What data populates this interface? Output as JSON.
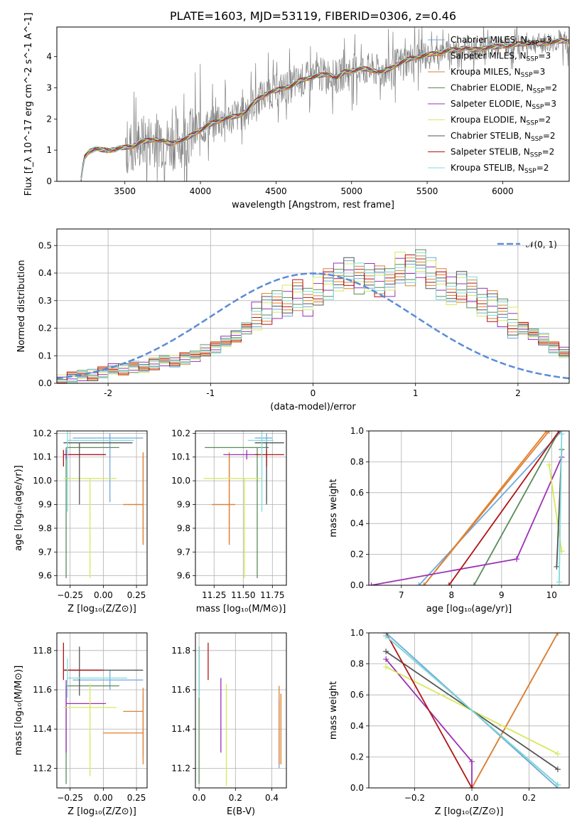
{
  "series_styles": [
    {
      "name": "Chabrier MILES",
      "nssp": "3",
      "color": "#6fa8dc"
    },
    {
      "name": "Salpeter MILES",
      "nssp": "3",
      "color": "#e67e22"
    },
    {
      "name": "Kroupa MILES",
      "nssp": "3",
      "color": "#d9823b"
    },
    {
      "name": "Chabrier ELODIE",
      "nssp": "2",
      "color": "#5b8a5b"
    },
    {
      "name": "Salpeter ELODIE",
      "nssp": "3",
      "color": "#9b30b5"
    },
    {
      "name": "Kroupa ELODIE",
      "nssp": "2",
      "color": "#d8e85a"
    },
    {
      "name": "Chabrier STELIB",
      "nssp": "2",
      "color": "#555555"
    },
    {
      "name": "Salpeter STELIB",
      "nssp": "2",
      "color": "#b01515"
    },
    {
      "name": "Kroupa STELIB",
      "nssp": "2",
      "color": "#7fdcdc"
    }
  ],
  "chart_data": [
    {
      "id": "spectrum",
      "type": "line",
      "title": "PLATE=1603, MJD=53119, FIBERID=0306, z=0.46",
      "xlabel": "wavelength [Angstrom, rest frame]",
      "ylabel": "Flux [f_λ 10^-17 erg cm^-2 s^-1 A^-1]",
      "xlim": [
        3050,
        6440
      ],
      "ylim": [
        0,
        4.95
      ],
      "xticks": [
        3500,
        4000,
        4500,
        5000,
        5500,
        6000
      ],
      "yticks": [
        0,
        1,
        2,
        3,
        4
      ],
      "continuum_x": [
        3210,
        3230,
        3260,
        3300,
        3350,
        3400,
        3450,
        3500,
        3550,
        3600,
        3650,
        3700,
        3750,
        3800,
        3850,
        3900,
        3950,
        4000,
        4050,
        4100,
        4150,
        4200,
        4250,
        4300,
        4350,
        4400,
        4450,
        4500,
        4550,
        4600,
        4650,
        4700,
        4750,
        4800,
        4850,
        4900,
        4950,
        5000,
        5050,
        5100,
        5150,
        5200,
        5250,
        5300,
        5350,
        5400,
        5450,
        5500,
        5550,
        5600,
        5650,
        5700,
        5750,
        5800,
        5850,
        5900,
        5950,
        6000,
        6050,
        6100,
        6150,
        6200,
        6250,
        6300,
        6350,
        6400,
        6440
      ],
      "continuum_y": [
        0.05,
        0.75,
        0.95,
        1.05,
        1.0,
        1.0,
        1.05,
        1.08,
        1.12,
        1.25,
        1.3,
        1.35,
        1.3,
        1.2,
        1.3,
        1.35,
        1.5,
        1.65,
        1.8,
        1.9,
        2.0,
        2.05,
        2.1,
        2.25,
        2.5,
        2.7,
        2.85,
        2.9,
        3.0,
        3.05,
        3.2,
        3.3,
        3.35,
        3.4,
        3.45,
        3.3,
        3.5,
        3.55,
        3.6,
        3.6,
        3.55,
        3.5,
        3.6,
        3.75,
        3.85,
        3.95,
        4.0,
        4.05,
        4.1,
        4.15,
        4.2,
        4.22,
        4.3,
        4.2,
        4.25,
        4.3,
        4.3,
        4.35,
        4.35,
        4.4,
        4.42,
        4.45,
        4.4,
        4.45,
        4.48,
        4.5,
        4.5
      ],
      "data_color": "#808080",
      "legend_position": "upper right",
      "grid": false
    },
    {
      "id": "residuals",
      "type": "histogram",
      "xlabel": "(data-model)/error",
      "ylabel": "Normed distribution",
      "xlim": [
        -2.5,
        2.5
      ],
      "ylim": [
        0,
        0.56
      ],
      "xticks": [
        -2,
        -1,
        0,
        1,
        2
      ],
      "yticks": [
        0.0,
        0.1,
        0.2,
        0.3,
        0.4,
        0.5
      ],
      "bin_width": 0.1,
      "bins_start": -2.5,
      "hist_values": [
        0.01,
        0.02,
        0.03,
        0.03,
        0.04,
        0.05,
        0.05,
        0.06,
        0.06,
        0.07,
        0.08,
        0.08,
        0.09,
        0.1,
        0.12,
        0.13,
        0.15,
        0.17,
        0.2,
        0.25,
        0.27,
        0.28,
        0.3,
        0.32,
        0.3,
        0.34,
        0.36,
        0.38,
        0.4,
        0.38,
        0.39,
        0.37,
        0.36,
        0.42,
        0.41,
        0.44,
        0.4,
        0.36,
        0.33,
        0.35,
        0.33,
        0.3,
        0.28,
        0.25,
        0.22,
        0.2,
        0.18,
        0.16,
        0.13,
        0.11
      ],
      "gaussian_label": "𝒩(0, 1)",
      "gaussian_color": "#5b8bd8",
      "grid": true,
      "legend_position": "upper right"
    },
    {
      "id": "age_vs_Z",
      "type": "errorbar",
      "xlabel": "Z [log₁₀(Z/Z⊙)]",
      "ylabel": "age  [log₁₀(age/yr)]",
      "xlim": [
        -0.35,
        0.33
      ],
      "ylim": [
        9.56,
        10.21
      ],
      "xticks": [
        -0.25,
        0.0,
        0.25
      ],
      "xtick_labels": [
        "−0.25",
        "0.00",
        "0.25"
      ],
      "yticks": [
        9.6,
        9.7,
        9.8,
        9.9,
        10.0,
        10.1,
        10.2
      ],
      "ytick_labels": [
        "9.6",
        "9.7",
        "9.8",
        "9.9",
        "10.0",
        "10.1",
        "10.2"
      ],
      "points": [
        {
          "x": 0.05,
          "y": 10.18,
          "xerr": [
            0.28,
            0.25
          ],
          "yerr": [
            0.27,
            0.02
          ],
          "s": 0
        },
        {
          "x": 0.3,
          "y": 9.9,
          "xerr": [
            0.15,
            0.0
          ],
          "yerr": [
            0.17,
            0.22
          ],
          "s": 1
        },
        {
          "x": 0.3,
          "y": 9.9,
          "xerr": [
            0.15,
            0.0
          ],
          "yerr": [
            0.16,
            0.21
          ],
          "s": 2
        },
        {
          "x": -0.28,
          "y": 10.14,
          "xerr": [
            0.0,
            0.4
          ],
          "yerr": [
            0.55,
            0.0
          ],
          "s": 3
        },
        {
          "x": -0.28,
          "y": 10.11,
          "xerr": [
            0.0,
            0.3
          ],
          "yerr": [
            0.02,
            0.02
          ],
          "s": 4
        },
        {
          "x": -0.1,
          "y": 10.01,
          "xerr": [
            0.2,
            0.2
          ],
          "yerr": [
            0.42,
            0.0
          ],
          "s": 5
        },
        {
          "x": -0.18,
          "y": 10.16,
          "xerr": [
            0.12,
            0.4
          ],
          "yerr": [
            0.26,
            0.0
          ],
          "s": 6
        },
        {
          "x": -0.3,
          "y": 10.11,
          "xerr": [
            0.0,
            0.32
          ],
          "yerr": [
            0.05,
            0.02
          ],
          "s": 7
        },
        {
          "x": -0.27,
          "y": 10.17,
          "xerr": [
            0.0,
            0.5
          ],
          "yerr": [
            0.3,
            0.04
          ],
          "s": 8
        }
      ],
      "grid": true
    },
    {
      "id": "age_vs_mass",
      "type": "errorbar",
      "xlabel": "mass [log₁₀(M/M⊙)]",
      "ylabel": "",
      "xlim": [
        11.09,
        11.87
      ],
      "ylim": [
        9.56,
        10.21
      ],
      "xticks": [
        11.25,
        11.5,
        11.75
      ],
      "xtick_labels": [
        "11.25",
        "11.50",
        "11.75"
      ],
      "yticks": [
        9.6,
        9.7,
        9.8,
        9.9,
        10.0,
        10.1,
        10.2
      ],
      "ytick_labels": [
        "9.6",
        "9.7",
        "9.8",
        "9.9",
        "10.0",
        "10.1",
        "10.2"
      ],
      "points": [
        {
          "x": 11.7,
          "y": 10.18,
          "xerr": [
            0.1,
            0.05
          ],
          "yerr": [
            0.27,
            0.02
          ],
          "s": 0
        },
        {
          "x": 11.38,
          "y": 9.9,
          "xerr": [
            0.15,
            0.05
          ],
          "yerr": [
            0.17,
            0.22
          ],
          "s": 1
        },
        {
          "x": 11.38,
          "y": 9.9,
          "xerr": [
            0.15,
            0.05
          ],
          "yerr": [
            0.16,
            0.21
          ],
          "s": 2
        },
        {
          "x": 11.62,
          "y": 10.14,
          "xerr": [
            0.45,
            0.1
          ],
          "yerr": [
            0.55,
            0.0
          ],
          "s": 3
        },
        {
          "x": 11.53,
          "y": 10.11,
          "xerr": [
            0.2,
            0.1
          ],
          "yerr": [
            0.02,
            0.02
          ],
          "s": 4
        },
        {
          "x": 11.51,
          "y": 10.01,
          "xerr": [
            0.35,
            0.15
          ],
          "yerr": [
            0.42,
            0.0
          ],
          "s": 5
        },
        {
          "x": 11.7,
          "y": 10.16,
          "xerr": [
            0.1,
            0.15
          ],
          "yerr": [
            0.26,
            0.0
          ],
          "s": 6
        },
        {
          "x": 11.7,
          "y": 10.11,
          "xerr": [
            0.1,
            0.15
          ],
          "yerr": [
            0.05,
            0.02
          ],
          "s": 7
        },
        {
          "x": 11.66,
          "y": 10.17,
          "xerr": [
            0.12,
            0.1
          ],
          "yerr": [
            0.3,
            0.04
          ],
          "s": 8
        }
      ],
      "grid": true
    },
    {
      "id": "weight_vs_age",
      "type": "line",
      "xlabel": "age  [log₁₀(age/yr)]",
      "ylabel": "mass weight",
      "xlim": [
        6.35,
        10.35
      ],
      "ylim": [
        0,
        1.0
      ],
      "xticks": [
        7,
        8,
        9,
        10
      ],
      "xtick_labels": [
        "7",
        "8",
        "9",
        "10"
      ],
      "yticks": [
        0.0,
        0.2,
        0.4,
        0.6,
        0.8,
        1.0
      ],
      "ytick_labels": [
        "0.0",
        "0.2",
        "0.4",
        "0.6",
        "0.8",
        "1.0"
      ],
      "lines": [
        {
          "x": [
            7.35,
            10.2
          ],
          "y": [
            0.0,
            1.0
          ],
          "s": 0
        },
        {
          "x": [
            7.45,
            9.9
          ],
          "y": [
            0.0,
            1.0
          ],
          "s": 1
        },
        {
          "x": [
            7.45,
            9.95
          ],
          "y": [
            0.0,
            1.0
          ],
          "s": 2
        },
        {
          "x": [
            8.45,
            10.15
          ],
          "y": [
            0.0,
            1.0
          ],
          "s": 3
        },
        {
          "x": [
            6.4,
            9.3,
            10.2
          ],
          "y": [
            0.0,
            0.17,
            0.83
          ],
          "s": 4
        },
        {
          "x": [
            9.95,
            10.2
          ],
          "y": [
            0.78,
            0.22
          ],
          "s": 5
        },
        {
          "x": [
            10.1,
            10.2
          ],
          "y": [
            0.12,
            0.88
          ],
          "s": 6
        },
        {
          "x": [
            7.95,
            10.15
          ],
          "y": [
            0.0,
            1.0
          ],
          "s": 7
        },
        {
          "x": [
            10.15,
            10.2
          ],
          "y": [
            0.02,
            0.98
          ],
          "s": 8
        }
      ],
      "grid": true
    },
    {
      "id": "mass_vs_Z",
      "type": "errorbar",
      "xlabel": "Z [log₁₀(Z/Z⊙)]",
      "ylabel": "mass [log₁₀(M/M⊙)]",
      "xlim": [
        -0.35,
        0.33
      ],
      "ylim": [
        11.1,
        11.89
      ],
      "xticks": [
        -0.25,
        0.0,
        0.25
      ],
      "xtick_labels": [
        "−0.25",
        "0.00",
        "0.25"
      ],
      "yticks": [
        11.2,
        11.4,
        11.6,
        11.8
      ],
      "ytick_labels": [
        "11.2",
        "11.4",
        "11.6",
        "11.8"
      ],
      "points": [
        {
          "x": 0.05,
          "y": 11.65,
          "xerr": [
            0.28,
            0.25
          ],
          "yerr": [
            0.05,
            0.05
          ],
          "s": 0
        },
        {
          "x": 0.3,
          "y": 11.38,
          "xerr": [
            0.3,
            0.0
          ],
          "yerr": [
            0.12,
            0.2
          ],
          "s": 1
        },
        {
          "x": 0.3,
          "y": 11.49,
          "xerr": [
            0.15,
            0.0
          ],
          "yerr": [
            0.27,
            0.12
          ],
          "s": 2
        },
        {
          "x": -0.28,
          "y": 11.62,
          "xerr": [
            0.0,
            0.4
          ],
          "yerr": [
            0.5,
            0.0
          ],
          "s": 3
        },
        {
          "x": -0.28,
          "y": 11.53,
          "xerr": [
            0.0,
            0.3
          ],
          "yerr": [
            0.25,
            0.12
          ],
          "s": 4
        },
        {
          "x": -0.1,
          "y": 11.51,
          "xerr": [
            0.2,
            0.2
          ],
          "yerr": [
            0.35,
            0.12
          ],
          "s": 5
        },
        {
          "x": -0.18,
          "y": 11.7,
          "xerr": [
            0.12,
            0.48
          ],
          "yerr": [
            0.13,
            0.12
          ],
          "s": 6
        },
        {
          "x": -0.3,
          "y": 11.7,
          "xerr": [
            0.0,
            0.3
          ],
          "yerr": [
            0.05,
            0.14
          ],
          "s": 7
        },
        {
          "x": -0.27,
          "y": 11.66,
          "xerr": [
            0.0,
            0.45
          ],
          "yerr": [
            0.1,
            0.1
          ],
          "s": 8
        }
      ],
      "grid": true
    },
    {
      "id": "mass_vs_ebv",
      "type": "errorbar",
      "xlabel": "E(B-V)",
      "ylabel": "",
      "xlim": [
        -0.02,
        0.48
      ],
      "ylim": [
        11.1,
        11.89
      ],
      "xticks": [
        0.0,
        0.2,
        0.4
      ],
      "xtick_labels": [
        "0.0",
        "0.2",
        "0.4"
      ],
      "yticks": [
        11.2,
        11.4,
        11.6,
        11.8
      ],
      "ytick_labels": [
        "11.2",
        "11.4",
        "11.6",
        "11.8"
      ],
      "points": [
        {
          "x": 0.44,
          "y": 11.4,
          "xerr": [
            0.0,
            0.0
          ],
          "yerr": [
            0.2,
            0.15
          ],
          "s": 0
        },
        {
          "x": 0.45,
          "y": 11.38,
          "xerr": [
            0.0,
            0.0
          ],
          "yerr": [
            0.16,
            0.2
          ],
          "s": 1
        },
        {
          "x": 0.44,
          "y": 11.5,
          "xerr": [
            0.0,
            0.0
          ],
          "yerr": [
            0.28,
            0.12
          ],
          "s": 2
        },
        {
          "x": 0.0,
          "y": 11.62,
          "xerr": [
            0.0,
            0.0
          ],
          "yerr": [
            0.5,
            0.2
          ],
          "s": 3
        },
        {
          "x": 0.12,
          "y": 11.53,
          "xerr": [
            0.0,
            0.0
          ],
          "yerr": [
            0.25,
            0.13
          ],
          "s": 4
        },
        {
          "x": 0.15,
          "y": 11.51,
          "xerr": [
            0.0,
            0.0
          ],
          "yerr": [
            0.4,
            0.12
          ],
          "s": 5
        },
        {
          "x": 0.0,
          "y": 11.7,
          "xerr": [
            0.0,
            0.0
          ],
          "yerr": [
            0.13,
            0.12
          ],
          "s": 6
        },
        {
          "x": 0.05,
          "y": 11.7,
          "xerr": [
            0.0,
            0.0
          ],
          "yerr": [
            0.05,
            0.14
          ],
          "s": 7
        },
        {
          "x": 0.0,
          "y": 11.66,
          "xerr": [
            0.0,
            0.0
          ],
          "yerr": [
            0.1,
            0.16
          ],
          "s": 8
        }
      ],
      "grid": true
    },
    {
      "id": "weight_vs_Z",
      "type": "line",
      "xlabel": "Z [log₁₀(Z/Z⊙)]",
      "ylabel": "mass weight",
      "xlim": [
        -0.36,
        0.34
      ],
      "ylim": [
        0,
        1.0
      ],
      "xticks": [
        -0.2,
        0.0,
        0.2
      ],
      "xtick_labels": [
        "−0.2",
        "0.0",
        "0.2"
      ],
      "yticks": [
        0.0,
        0.2,
        0.4,
        0.6,
        0.8,
        1.0
      ],
      "ytick_labels": [
        "0.0",
        "0.2",
        "0.4",
        "0.6",
        "0.8",
        "1.0"
      ],
      "lines": [
        {
          "x": [
            -0.3,
            0.3
          ],
          "y": [
            1.0,
            0.0
          ],
          "s": 0
        },
        {
          "x": [
            0.0,
            0.3
          ],
          "y": [
            0.0,
            1.0
          ],
          "s": 1
        },
        {
          "x": [
            0.0,
            0.3
          ],
          "y": [
            0.0,
            1.0
          ],
          "s": 2
        },
        {
          "x": [
            -0.3,
            0.3
          ],
          "y": [
            0.98,
            0.02
          ],
          "s": 3
        },
        {
          "x": [
            -0.3,
            0.0,
            0.0
          ],
          "y": [
            0.83,
            0.17,
            0.0
          ],
          "s": 4
        },
        {
          "x": [
            -0.3,
            0.3
          ],
          "y": [
            0.78,
            0.22
          ],
          "s": 5
        },
        {
          "x": [
            -0.3,
            0.3
          ],
          "y": [
            0.88,
            0.12
          ],
          "s": 6
        },
        {
          "x": [
            -0.3,
            0.0
          ],
          "y": [
            1.0,
            0.0
          ],
          "s": 7
        },
        {
          "x": [
            -0.3,
            0.3
          ],
          "y": [
            0.98,
            0.02
          ],
          "s": 8
        }
      ],
      "grid": true
    }
  ]
}
